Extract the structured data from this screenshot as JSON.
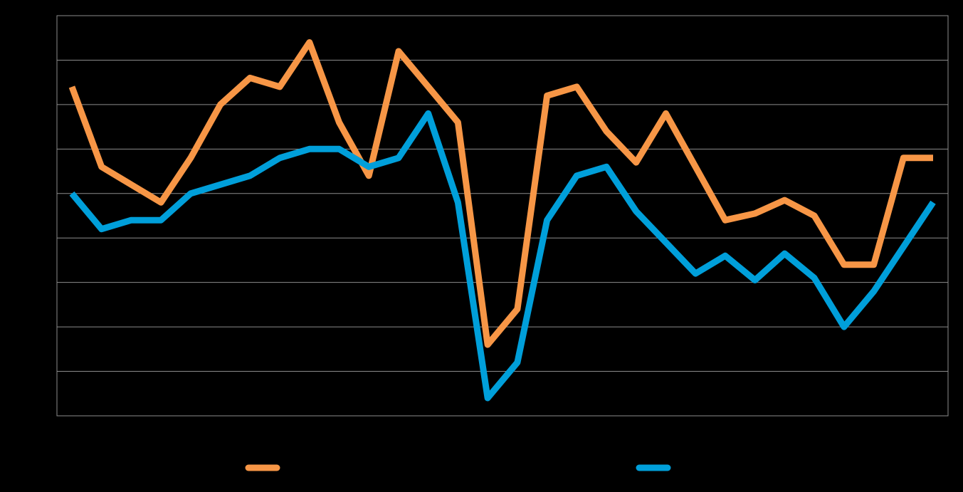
{
  "chart_data": {
    "type": "line",
    "title": "",
    "xlabel": "",
    "ylabel": "",
    "ylim": [
      0,
      9
    ],
    "yticks": [
      0,
      1,
      2,
      3,
      4,
      5,
      6,
      7,
      8,
      9
    ],
    "grid": true,
    "legend_position": "bottom",
    "x": [
      1,
      2,
      3,
      4,
      5,
      6,
      7,
      8,
      9,
      10,
      11,
      12,
      13,
      14,
      15,
      16,
      17,
      18,
      19,
      20,
      21,
      22,
      23,
      24,
      25,
      26,
      27,
      28,
      29,
      30
    ],
    "series": [
      {
        "name": "",
        "color": "#F79646",
        "values": [
          7.4,
          5.6,
          5.2,
          4.8,
          5.8,
          7.0,
          7.6,
          7.4,
          8.4,
          6.6,
          5.4,
          8.2,
          7.4,
          6.6,
          1.6,
          2.4,
          7.2,
          7.4,
          6.4,
          5.7,
          6.8,
          5.6,
          4.4,
          4.55,
          4.85,
          4.5,
          3.4,
          3.4,
          5.8,
          5.8
        ]
      },
      {
        "name": "",
        "color": "#009FDA",
        "values": [
          5.0,
          4.2,
          4.4,
          4.4,
          5.0,
          5.2,
          5.4,
          5.8,
          6.0,
          6.0,
          5.6,
          5.8,
          6.8,
          4.8,
          0.4,
          1.2,
          4.4,
          5.4,
          5.6,
          4.6,
          3.9,
          3.2,
          3.6,
          3.05,
          3.65,
          3.1,
          2.0,
          2.8,
          3.8,
          4.8
        ]
      }
    ]
  }
}
